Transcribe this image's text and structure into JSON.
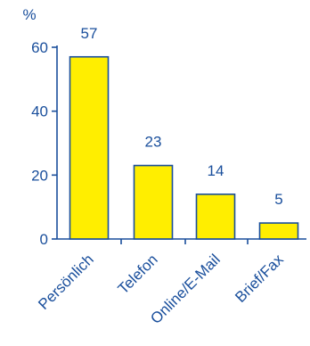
{
  "chart_data": {
    "type": "bar",
    "title": "",
    "xlabel": "",
    "ylabel": "%",
    "ylim": [
      0,
      60
    ],
    "yticks": [
      0,
      20,
      40,
      60
    ],
    "grid": false,
    "legend": "none",
    "categories": [
      "Persönlich",
      "Telefon",
      "Online/E-Mail",
      "Brief/Fax"
    ],
    "values": [
      57,
      23,
      14,
      5
    ],
    "value_labels": [
      "57",
      "23",
      "14",
      "5"
    ],
    "colors": {
      "bar_fill": "#ffee00",
      "bar_stroke": "#1a4f9c",
      "axis": "#1a4f9c",
      "text": "#1a4f9c"
    }
  }
}
